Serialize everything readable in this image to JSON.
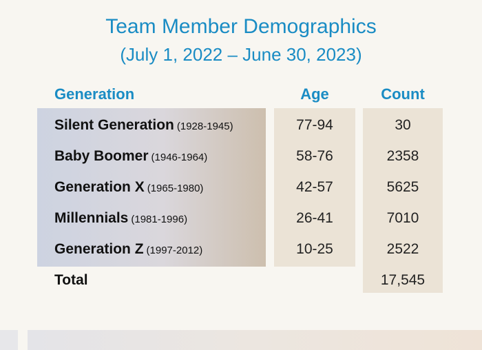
{
  "title": "Team Member Demographics",
  "subtitle": "(July 1, 2022 – June 30, 2023)",
  "headers": {
    "generation": "Generation",
    "age": "Age",
    "count": "Count"
  },
  "rows": [
    {
      "name": "Silent Generation",
      "years": "(1928-1945)",
      "age": "77-94",
      "count": "30"
    },
    {
      "name": "Baby Boomer",
      "years": "(1946-1964)",
      "age": "58-76",
      "count": "2358"
    },
    {
      "name": "Generation X",
      "years": "(1965-1980)",
      "age": "42-57",
      "count": "5625"
    },
    {
      "name": "Millennials",
      "years": "(1981-1996)",
      "age": "26-41",
      "count": "7010"
    },
    {
      "name": "Generation Z",
      "years": "(1997-2012)",
      "age": "10-25",
      "count": "2522"
    }
  ],
  "total": {
    "label": "Total",
    "count": "17,545"
  },
  "colors": {
    "accent": "#1a8cc4",
    "panel": "#ebe3d6",
    "background": "#f8f6f1"
  }
}
